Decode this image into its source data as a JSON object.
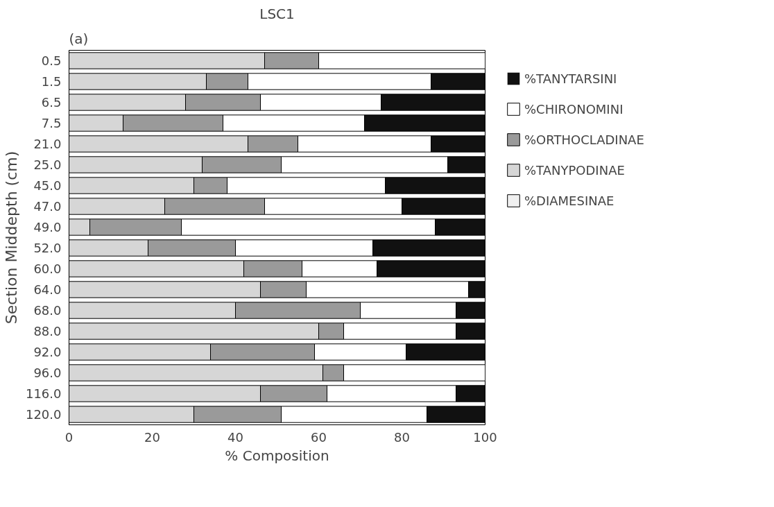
{
  "chart_data": {
    "type": "bar",
    "orientation": "horizontal",
    "stacked": true,
    "title": "LSC1",
    "xlabel": "% Composition",
    "ylabel": "Section Middepth (cm)",
    "annotations": [
      "(a)"
    ],
    "categories": [
      "0.5",
      "1.5",
      "6.5",
      "7.5",
      "21.0",
      "25.0",
      "45.0",
      "47.0",
      "49.0",
      "52.0",
      "60.0",
      "64.0",
      "68.0",
      "88.0",
      "92.0",
      "96.0",
      "116.0",
      "120.0"
    ],
    "series": [
      {
        "name": "%DIAMESINAE",
        "color": "#f0f0f0",
        "values": [
          0,
          0,
          0,
          0,
          0,
          0,
          0,
          0,
          0,
          0,
          0,
          0,
          0,
          0,
          0,
          0,
          0,
          0
        ]
      },
      {
        "name": "%TANYPODINAE",
        "color": "#d6d6d6",
        "values": [
          47,
          33,
          28,
          13,
          43,
          32,
          30,
          23,
          5,
          19,
          42,
          46,
          40,
          60,
          34,
          61,
          46,
          30
        ]
      },
      {
        "name": "%ORTHOCLADINAE",
        "color": "#9a9a9a",
        "values": [
          13,
          10,
          18,
          24,
          12,
          19,
          8,
          24,
          22,
          21,
          14,
          11,
          30,
          6,
          25,
          5,
          16,
          21
        ]
      },
      {
        "name": "%CHIRONOMINI",
        "color": "#ffffff",
        "values": [
          40,
          44,
          29,
          34,
          32,
          40,
          38,
          33,
          61,
          33,
          18,
          39,
          23,
          27,
          22,
          34,
          31,
          35
        ]
      },
      {
        "name": "%TANYTARSINI",
        "color": "#111111",
        "values": [
          0,
          13,
          25,
          29,
          13,
          9,
          24,
          20,
          12,
          27,
          26,
          4,
          7,
          7,
          19,
          0,
          7,
          14
        ]
      }
    ],
    "xlim": [
      0,
      100
    ],
    "xticks": [
      0,
      20,
      40,
      60,
      80,
      100
    ],
    "grid": false,
    "legend": "right"
  }
}
